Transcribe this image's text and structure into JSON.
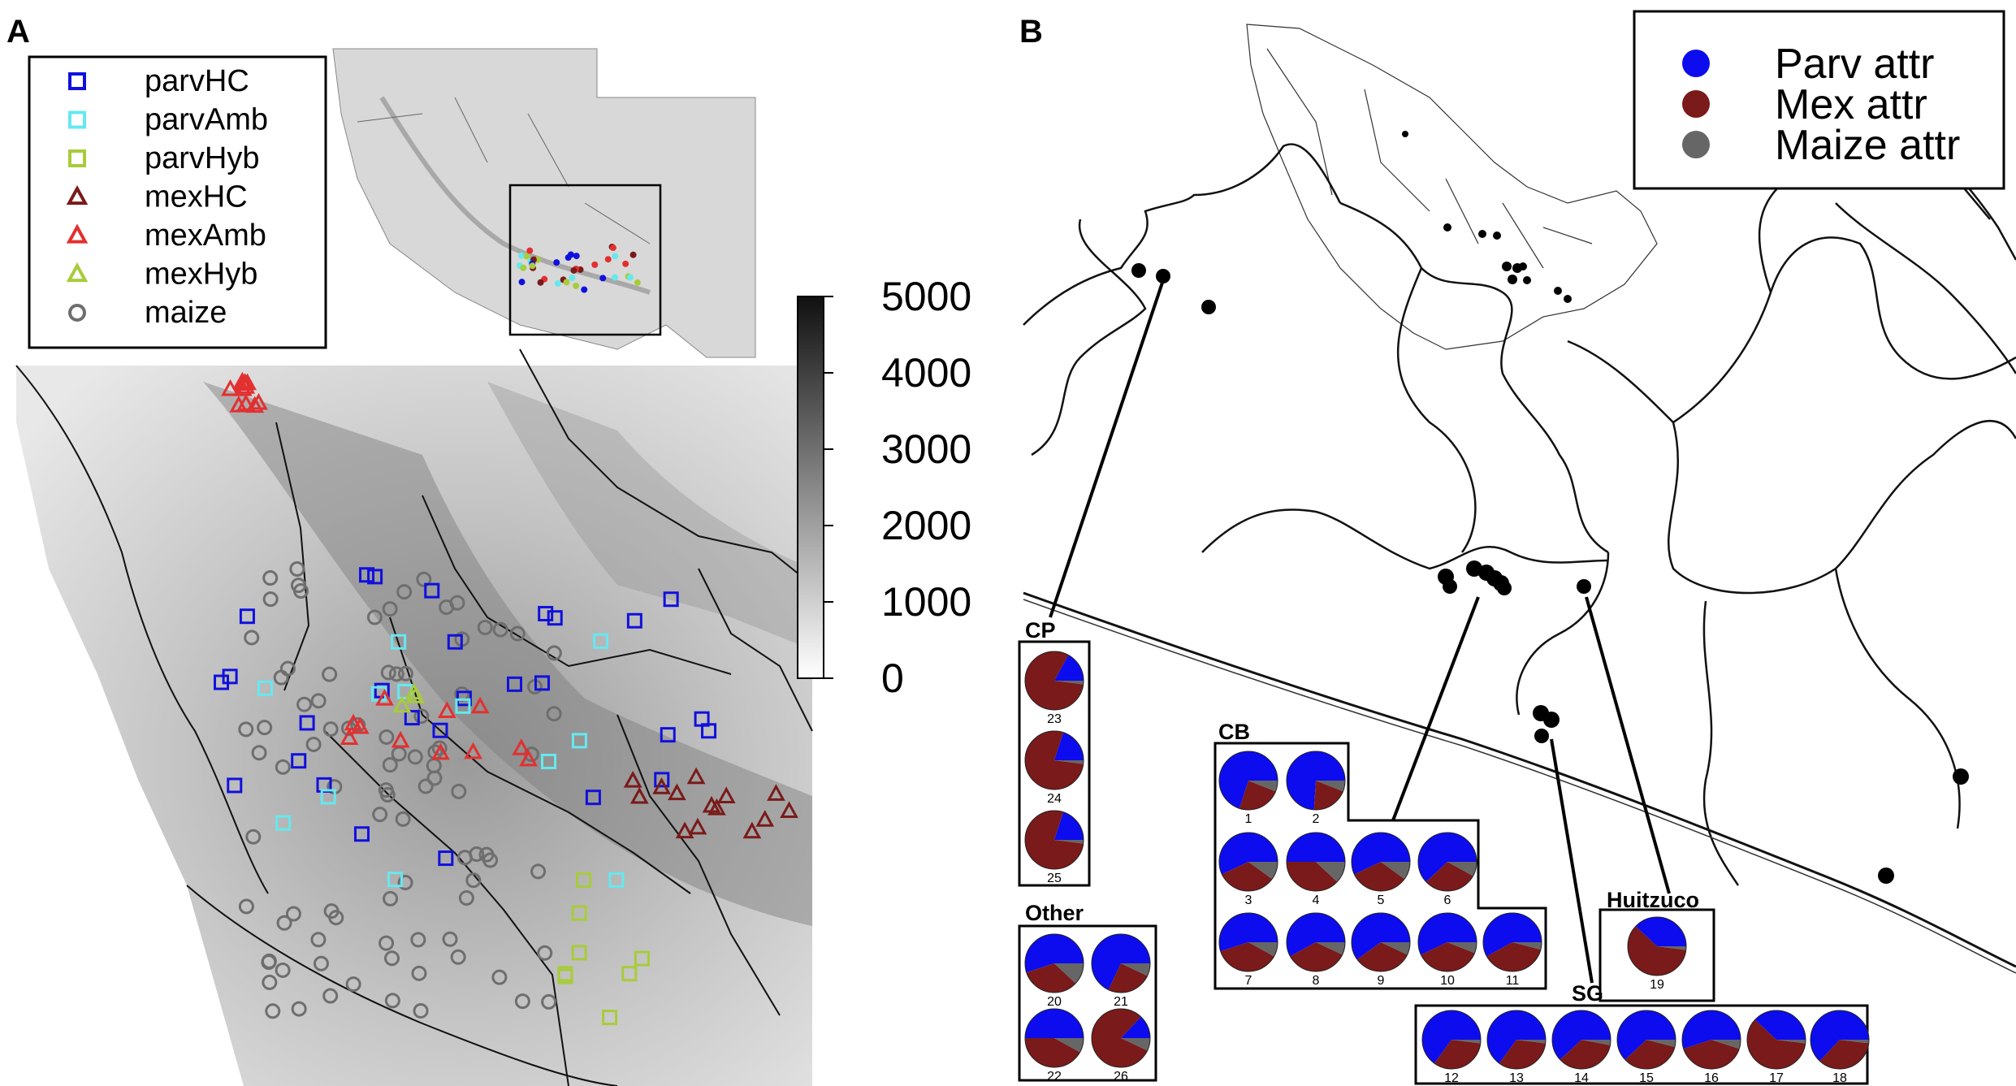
{
  "panel_a": {
    "label": "A",
    "legend": [
      {
        "label": "parvHC",
        "shape": "square",
        "color": "#1010dd"
      },
      {
        "label": "parvAmb",
        "shape": "square",
        "color": "#66e8f0"
      },
      {
        "label": "parvHyb",
        "shape": "square",
        "color": "#a8cc3a"
      },
      {
        "label": "mexHC",
        "shape": "triangle",
        "color": "#7a1a1a"
      },
      {
        "label": "mexAmb",
        "shape": "triangle",
        "color": "#e23030"
      },
      {
        "label": "mexHyb",
        "shape": "triangle",
        "color": "#a8cc3a"
      },
      {
        "label": "maize",
        "shape": "circle",
        "color": "#6e6e6e"
      }
    ],
    "elevation_scale": {
      "ticks": [
        "5000",
        "4000",
        "3000",
        "2000",
        "1000",
        "0"
      ],
      "max": 5000,
      "min": 0
    }
  },
  "panel_b": {
    "label": "B",
    "legend": [
      {
        "label": "Parv attr",
        "color": "#0c0cee"
      },
      {
        "label": "Mex attr",
        "color": "#7a1a1a"
      },
      {
        "label": "Maize attr",
        "color": "#666666"
      }
    ],
    "groups": [
      {
        "name": "CP",
        "pies": [
          {
            "id": "23",
            "parv": 0.17,
            "mex": 0.81,
            "maize": 0.02
          },
          {
            "id": "24",
            "parv": 0.2,
            "mex": 0.78,
            "maize": 0.02
          },
          {
            "id": "25",
            "parv": 0.2,
            "mex": 0.78,
            "maize": 0.02
          }
        ]
      },
      {
        "name": "Other",
        "pies": [
          {
            "id": "20",
            "parv": 0.55,
            "mex": 0.33,
            "maize": 0.12
          },
          {
            "id": "21",
            "parv": 0.68,
            "mex": 0.25,
            "maize": 0.07
          },
          {
            "id": "22",
            "parv": 0.5,
            "mex": 0.42,
            "maize": 0.08
          },
          {
            "id": "26",
            "parv": 0.13,
            "mex": 0.8,
            "maize": 0.07
          }
        ]
      },
      {
        "name": "CB",
        "pies": [
          {
            "id": "1",
            "parv": 0.7,
            "mex": 0.24,
            "maize": 0.06
          },
          {
            "id": "2",
            "parv": 0.74,
            "mex": 0.2,
            "maize": 0.06
          },
          {
            "id": "3",
            "parv": 0.57,
            "mex": 0.33,
            "maize": 0.1
          },
          {
            "id": "4",
            "parv": 0.5,
            "mex": 0.38,
            "maize": 0.12
          },
          {
            "id": "5",
            "parv": 0.57,
            "mex": 0.33,
            "maize": 0.1
          },
          {
            "id": "6",
            "parv": 0.62,
            "mex": 0.3,
            "maize": 0.08
          },
          {
            "id": "7",
            "parv": 0.55,
            "mex": 0.37,
            "maize": 0.08
          },
          {
            "id": "8",
            "parv": 0.58,
            "mex": 0.35,
            "maize": 0.07
          },
          {
            "id": "9",
            "parv": 0.6,
            "mex": 0.33,
            "maize": 0.07
          },
          {
            "id": "10",
            "parv": 0.57,
            "mex": 0.37,
            "maize": 0.06
          },
          {
            "id": "11",
            "parv": 0.58,
            "mex": 0.38,
            "maize": 0.04
          }
        ]
      },
      {
        "name": "Huitzuco",
        "pies": [
          {
            "id": "19",
            "parv": 0.38,
            "mex": 0.6,
            "maize": 0.02
          }
        ]
      },
      {
        "name": "SG",
        "pies": [
          {
            "id": "12",
            "parv": 0.65,
            "mex": 0.33,
            "maize": 0.02
          },
          {
            "id": "13",
            "parv": 0.65,
            "mex": 0.33,
            "maize": 0.02
          },
          {
            "id": "14",
            "parv": 0.62,
            "mex": 0.35,
            "maize": 0.03
          },
          {
            "id": "15",
            "parv": 0.62,
            "mex": 0.34,
            "maize": 0.04
          },
          {
            "id": "16",
            "parv": 0.55,
            "mex": 0.4,
            "maize": 0.05
          },
          {
            "id": "17",
            "parv": 0.38,
            "mex": 0.6,
            "maize": 0.02
          },
          {
            "id": "18",
            "parv": 0.63,
            "mex": 0.35,
            "maize": 0.02
          }
        ]
      }
    ]
  }
}
